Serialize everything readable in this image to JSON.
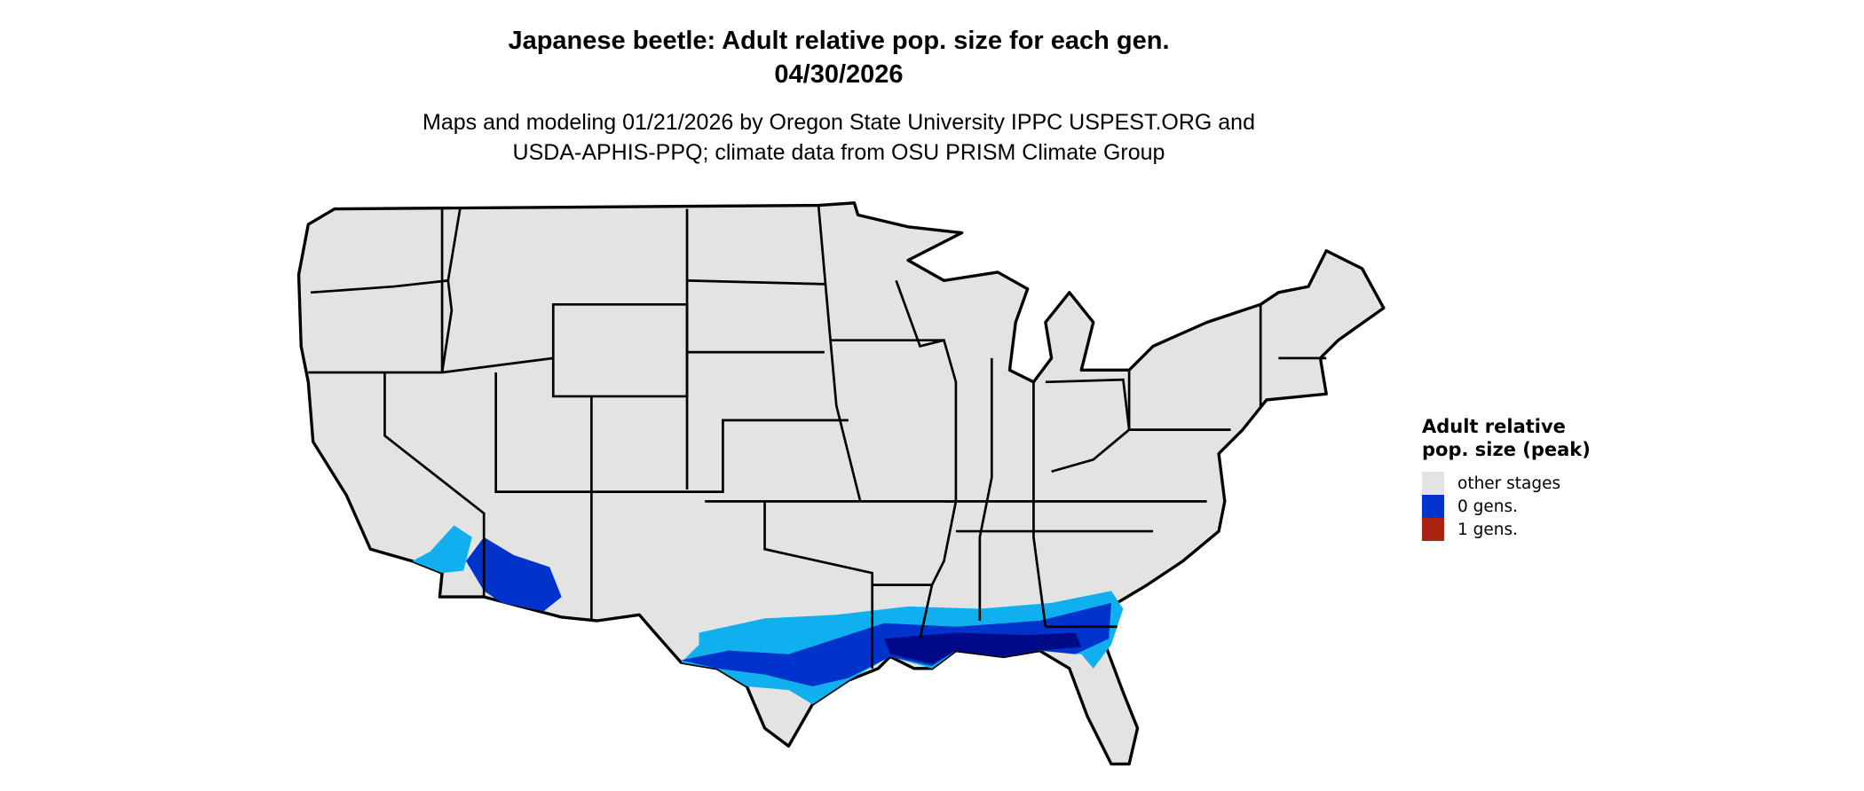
{
  "title": "Japanese beetle: Adult relative pop. size for each gen.",
  "date": "04/30/2026",
  "subtitle_line1": "Maps and modeling 01/21/2026 by Oregon State University IPPC USPEST.ORG and",
  "subtitle_line2": "USDA-APHIS-PPQ; climate data from OSU PRISM Climate Group",
  "legend": {
    "title": "Adult relative pop. size (peak)",
    "items": [
      {
        "label": "other stages",
        "color": "#e3e3e3"
      },
      {
        "label": "0 gens.",
        "color": "#0033cc"
      },
      {
        "label": "1 gens.",
        "color": "#aa2211"
      }
    ]
  },
  "map_colors": {
    "land": "#e3e3e3",
    "border": "#000000",
    "light_blue": "#10b0ee",
    "mid_blue": "#0033cc",
    "dark_blue": "#000a88"
  }
}
